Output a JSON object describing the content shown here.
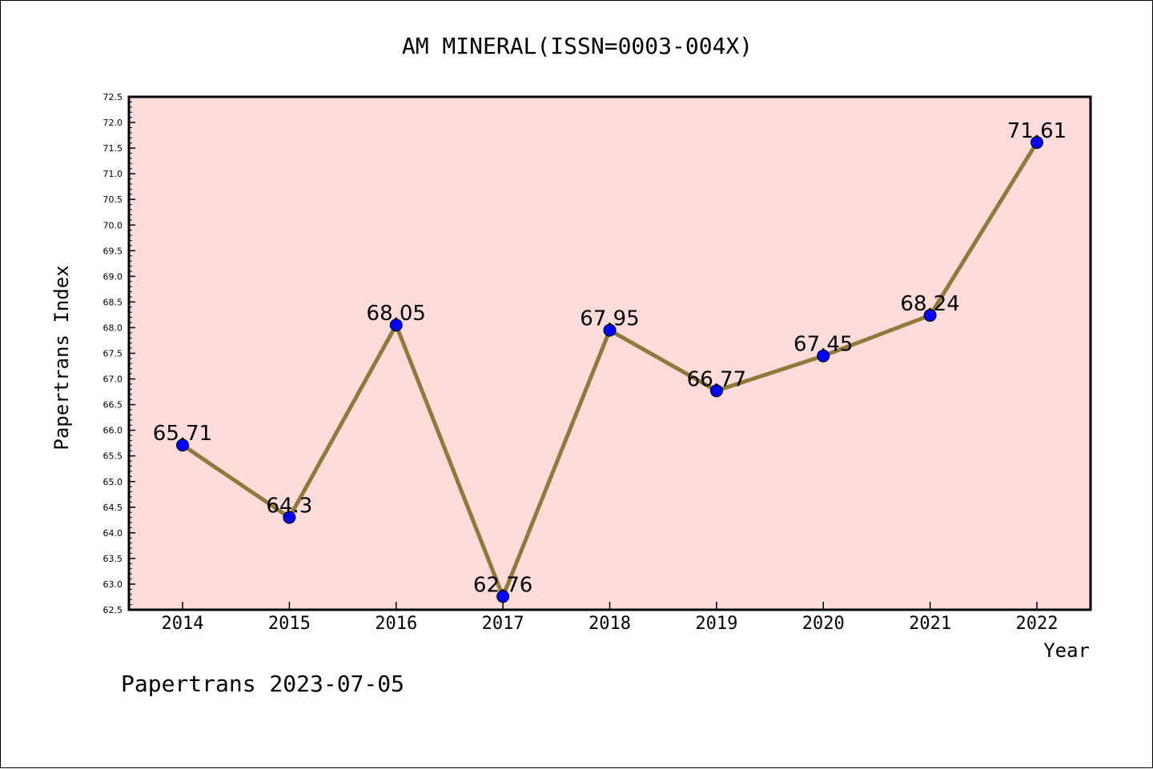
{
  "chart_data": {
    "type": "line",
    "title": "AM MINERAL(ISSN=0003-004X)",
    "xlabel": "Year",
    "ylabel": "Papertrans Index",
    "footer": "Papertrans 2023-07-05",
    "categories": [
      "2014",
      "2015",
      "2016",
      "2017",
      "2018",
      "2019",
      "2020",
      "2021",
      "2022"
    ],
    "values": [
      65.71,
      64.3,
      68.05,
      62.76,
      67.95,
      66.77,
      67.45,
      68.24,
      71.61
    ],
    "data_labels": [
      "65.71",
      "64.3",
      "68.05",
      "62.76",
      "67.95",
      "66.77",
      "67.45",
      "68.24",
      "71.61"
    ],
    "ylim": [
      62.5,
      72.5
    ],
    "y_ticks": [
      "62.5",
      "63.0",
      "63.5",
      "64.0",
      "64.5",
      "65.0",
      "65.5",
      "66.0",
      "66.5",
      "67.0",
      "67.5",
      "68.0",
      "68.5",
      "69.0",
      "69.5",
      "70.0",
      "70.5",
      "71.0",
      "71.5",
      "72.0",
      "72.5"
    ],
    "grid": false,
    "colors": {
      "plot_background": "#fddcd9",
      "line": "#8f7a3c",
      "marker": "#0000ff"
    }
  }
}
